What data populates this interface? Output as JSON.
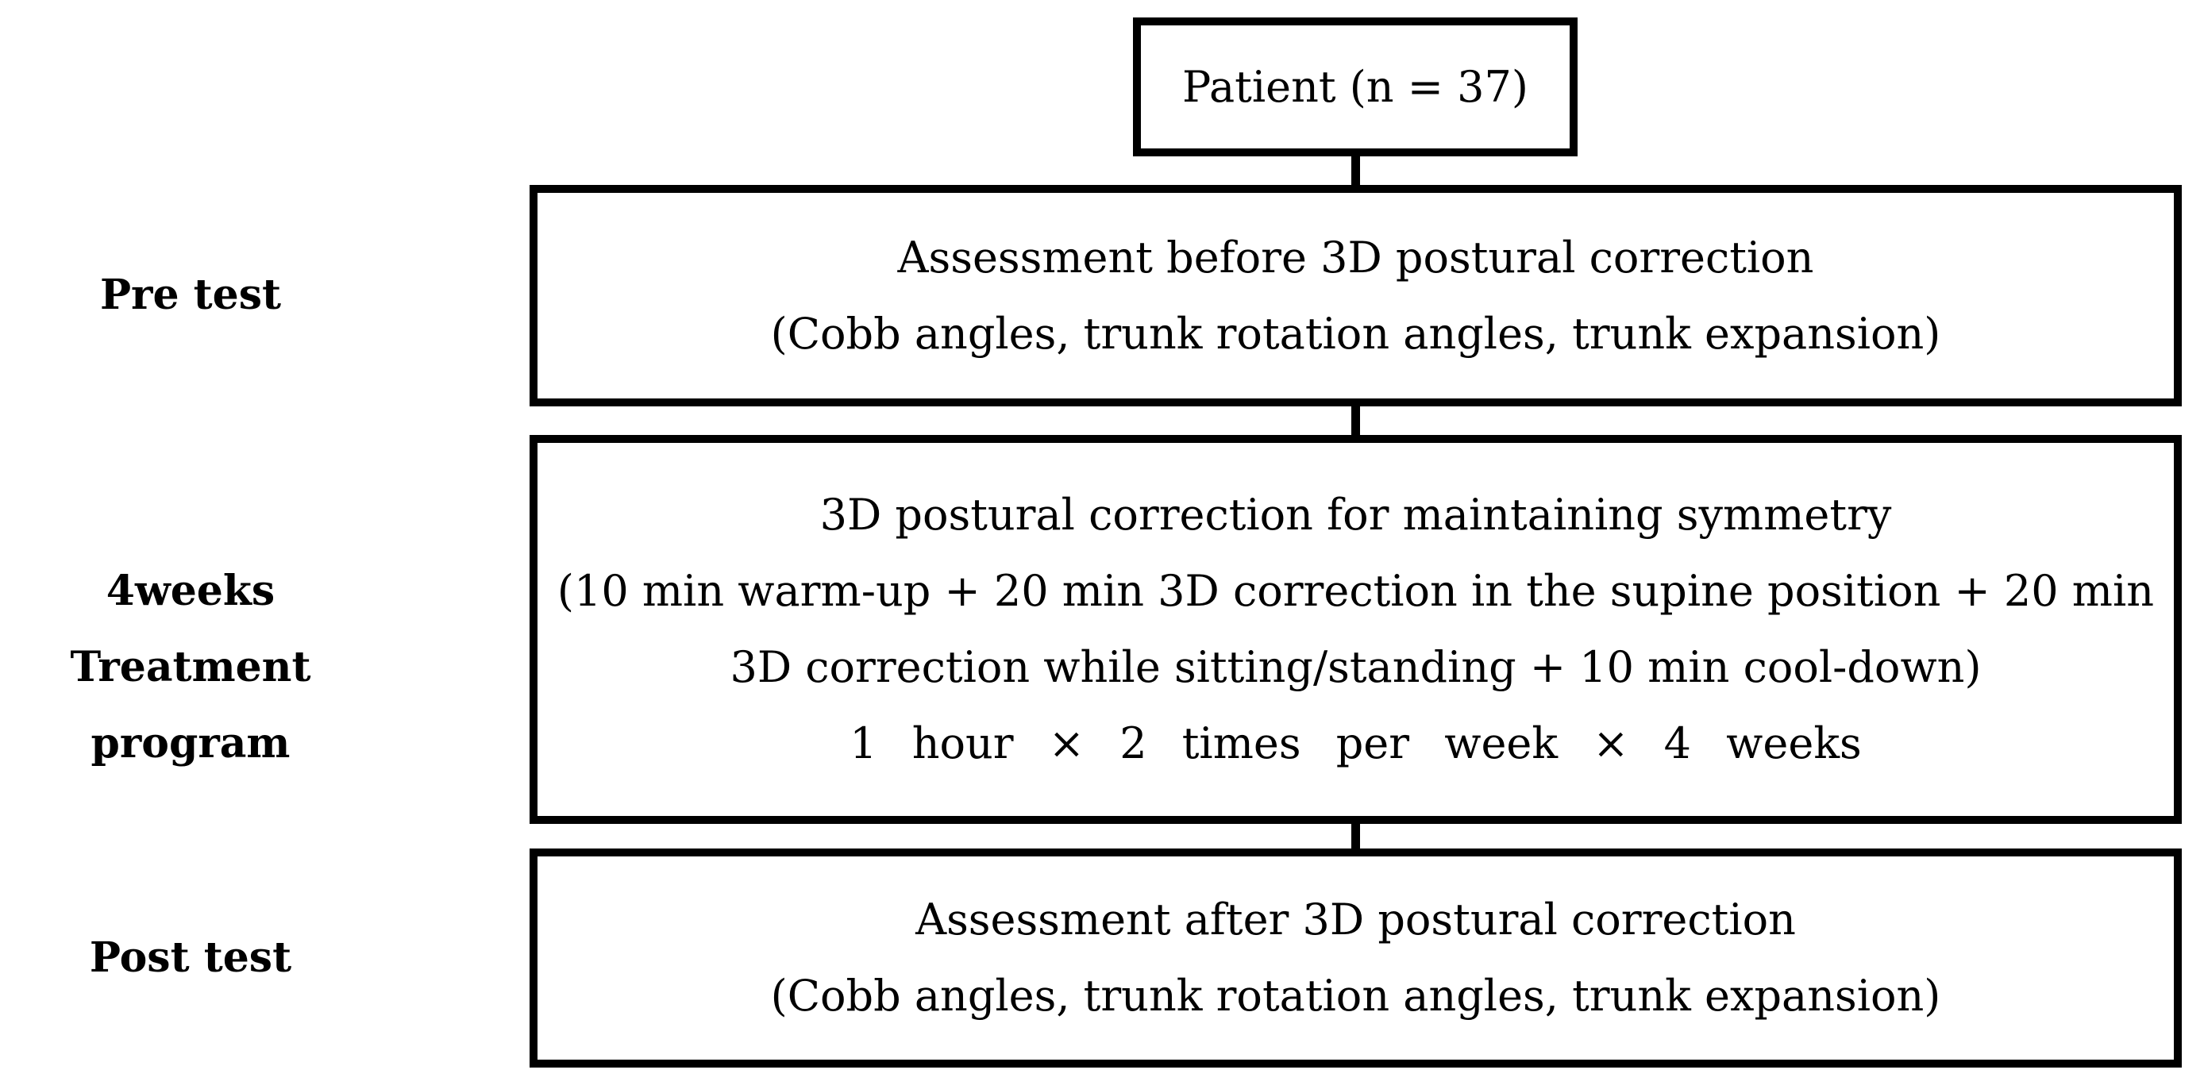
{
  "diagram": {
    "title_semantic": "Study flow diagram of 3D postural correction program",
    "colors": {
      "line": "#000000",
      "text": "#000000",
      "background": "#ffffff"
    },
    "patient_box": {
      "label": "Patient (n = 37)"
    },
    "stages": [
      {
        "side_label_lines": [
          "Pre test"
        ],
        "box_lines": [
          "Assessment before 3D postural correction",
          "(Cobb angles, trunk rotation angles, trunk expansion)"
        ]
      },
      {
        "side_label_lines": [
          "4weeks",
          "Treatment program"
        ],
        "box_lines": [
          "3D postural correction for maintaining symmetry",
          "(10 min warm-up + 20 min 3D correction in the supine position + 20 min",
          "3D correction while sitting/standing + 10 min cool-down)",
          "1 hour × 2 times per week × 4 weeks"
        ]
      },
      {
        "side_label_lines": [
          "Post test"
        ],
        "box_lines": [
          "Assessment after 3D postural correction",
          "(Cobb angles, trunk rotation angles, trunk expansion)"
        ]
      }
    ]
  }
}
